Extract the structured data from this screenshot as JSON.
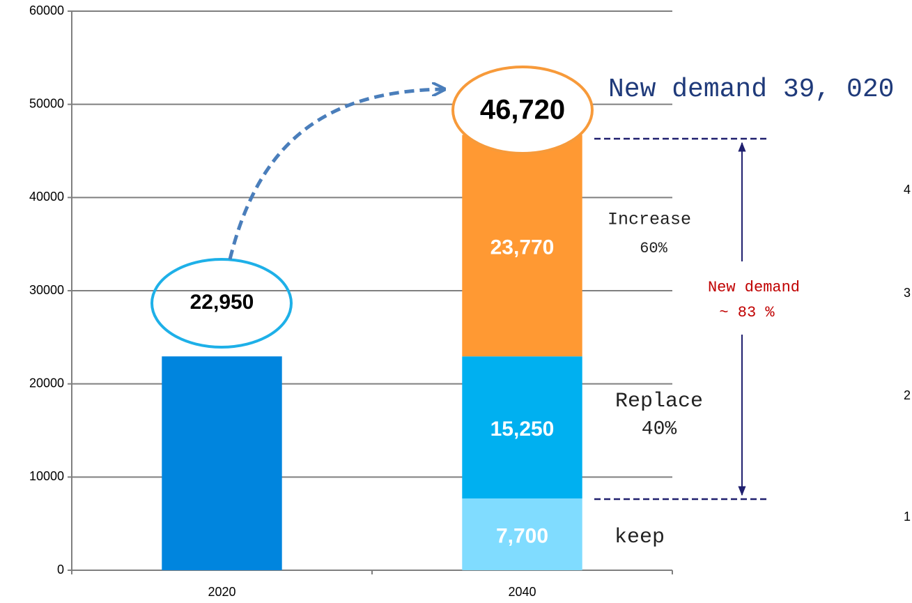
{
  "chart_data": {
    "type": "bar",
    "stacked": true,
    "categories": [
      "2020",
      "2040"
    ],
    "series": [
      {
        "color": "#0085de",
        "values": [
          22950,
          null
        ],
        "value_labels": [
          "22,950",
          null
        ]
      },
      {
        "color": "#80dcff",
        "values": [
          null,
          7700
        ],
        "value_labels": [
          null,
          "7,700"
        ]
      },
      {
        "color": "#00b0f0",
        "values": [
          null,
          15250
        ],
        "value_labels": [
          null,
          "15,250"
        ]
      },
      {
        "color": "#ff9933",
        "values": [
          null,
          23770
        ],
        "value_labels": [
          null,
          "23,770"
        ]
      }
    ],
    "ylim": [
      0,
      60000
    ],
    "yticks": [
      0,
      10000,
      20000,
      30000,
      40000,
      50000,
      60000
    ],
    "grid": true,
    "annotations": {
      "total": "46,720",
      "headline": "New demand 39, 020",
      "increase": [
        "Increase",
        "60%"
      ],
      "replace": [
        "Replace",
        "40%"
      ],
      "keep": "keep",
      "new_demand": [
        "New demand",
        "~ 83 %"
      ],
      "clipped_axis": [
        "4",
        "3",
        "2",
        "1"
      ]
    }
  }
}
